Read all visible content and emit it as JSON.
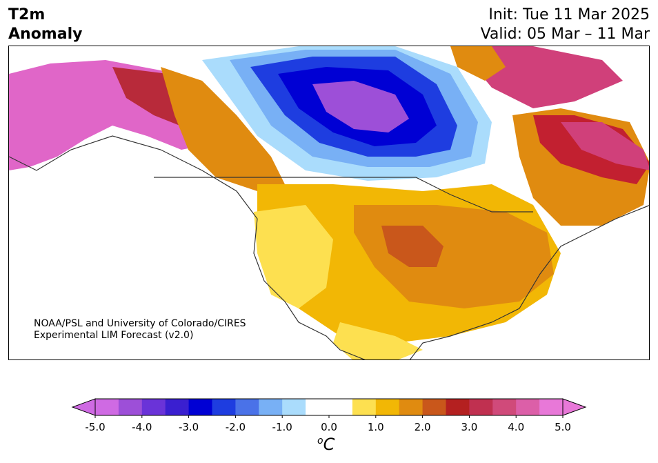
{
  "header": {
    "title": "T2m\nAnomaly",
    "init": "Init: Tue 11 Mar 2025",
    "valid": "Valid: 05 Mar – 11 Mar"
  },
  "credit": {
    "line1": "NOAA/PSL and University of Colorado/CIRES",
    "line2": "Experimental LIM Forecast (v2.0)"
  },
  "colorbar": {
    "ticks": [
      "-5.0",
      "-4.0",
      "-3.0",
      "-2.0",
      "-1.0",
      "0.0",
      "1.0",
      "2.0",
      "3.0",
      "4.0",
      "5.0"
    ],
    "unit_sup": "o",
    "unit": "C",
    "colors": [
      "#cf6ae3",
      "#9d4fd8",
      "#6a33d8",
      "#3a1fd0",
      "#0000d4",
      "#1e3de0",
      "#4a72e8",
      "#78b0f5",
      "#aadcfc",
      "#ffffff",
      "#ffffff",
      "#fde050",
      "#f2b705",
      "#e08b10",
      "#c9571b",
      "#b42020",
      "#c03050",
      "#d04a7a",
      "#dc5fa8",
      "#e878d8"
    ]
  },
  "map": {
    "colors": {
      "ocean": "#ffffff",
      "coast": "#333333",
      "pink": "#e066c8",
      "magenta": "#d0407a",
      "crimson": "#b82a3a",
      "red": "#c22030",
      "darkorange": "#c9571b",
      "orange": "#e08b10",
      "gold": "#f2b705",
      "yellow": "#fde050",
      "lightblue": "#aadcfc",
      "sky": "#78b0f5",
      "blue": "#4a72e8",
      "medblue": "#1e3de0",
      "deepblue": "#0000d4",
      "indigo": "#3a1fd0",
      "violet": "#6a33d8",
      "purple": "#9d4fd8"
    }
  }
}
